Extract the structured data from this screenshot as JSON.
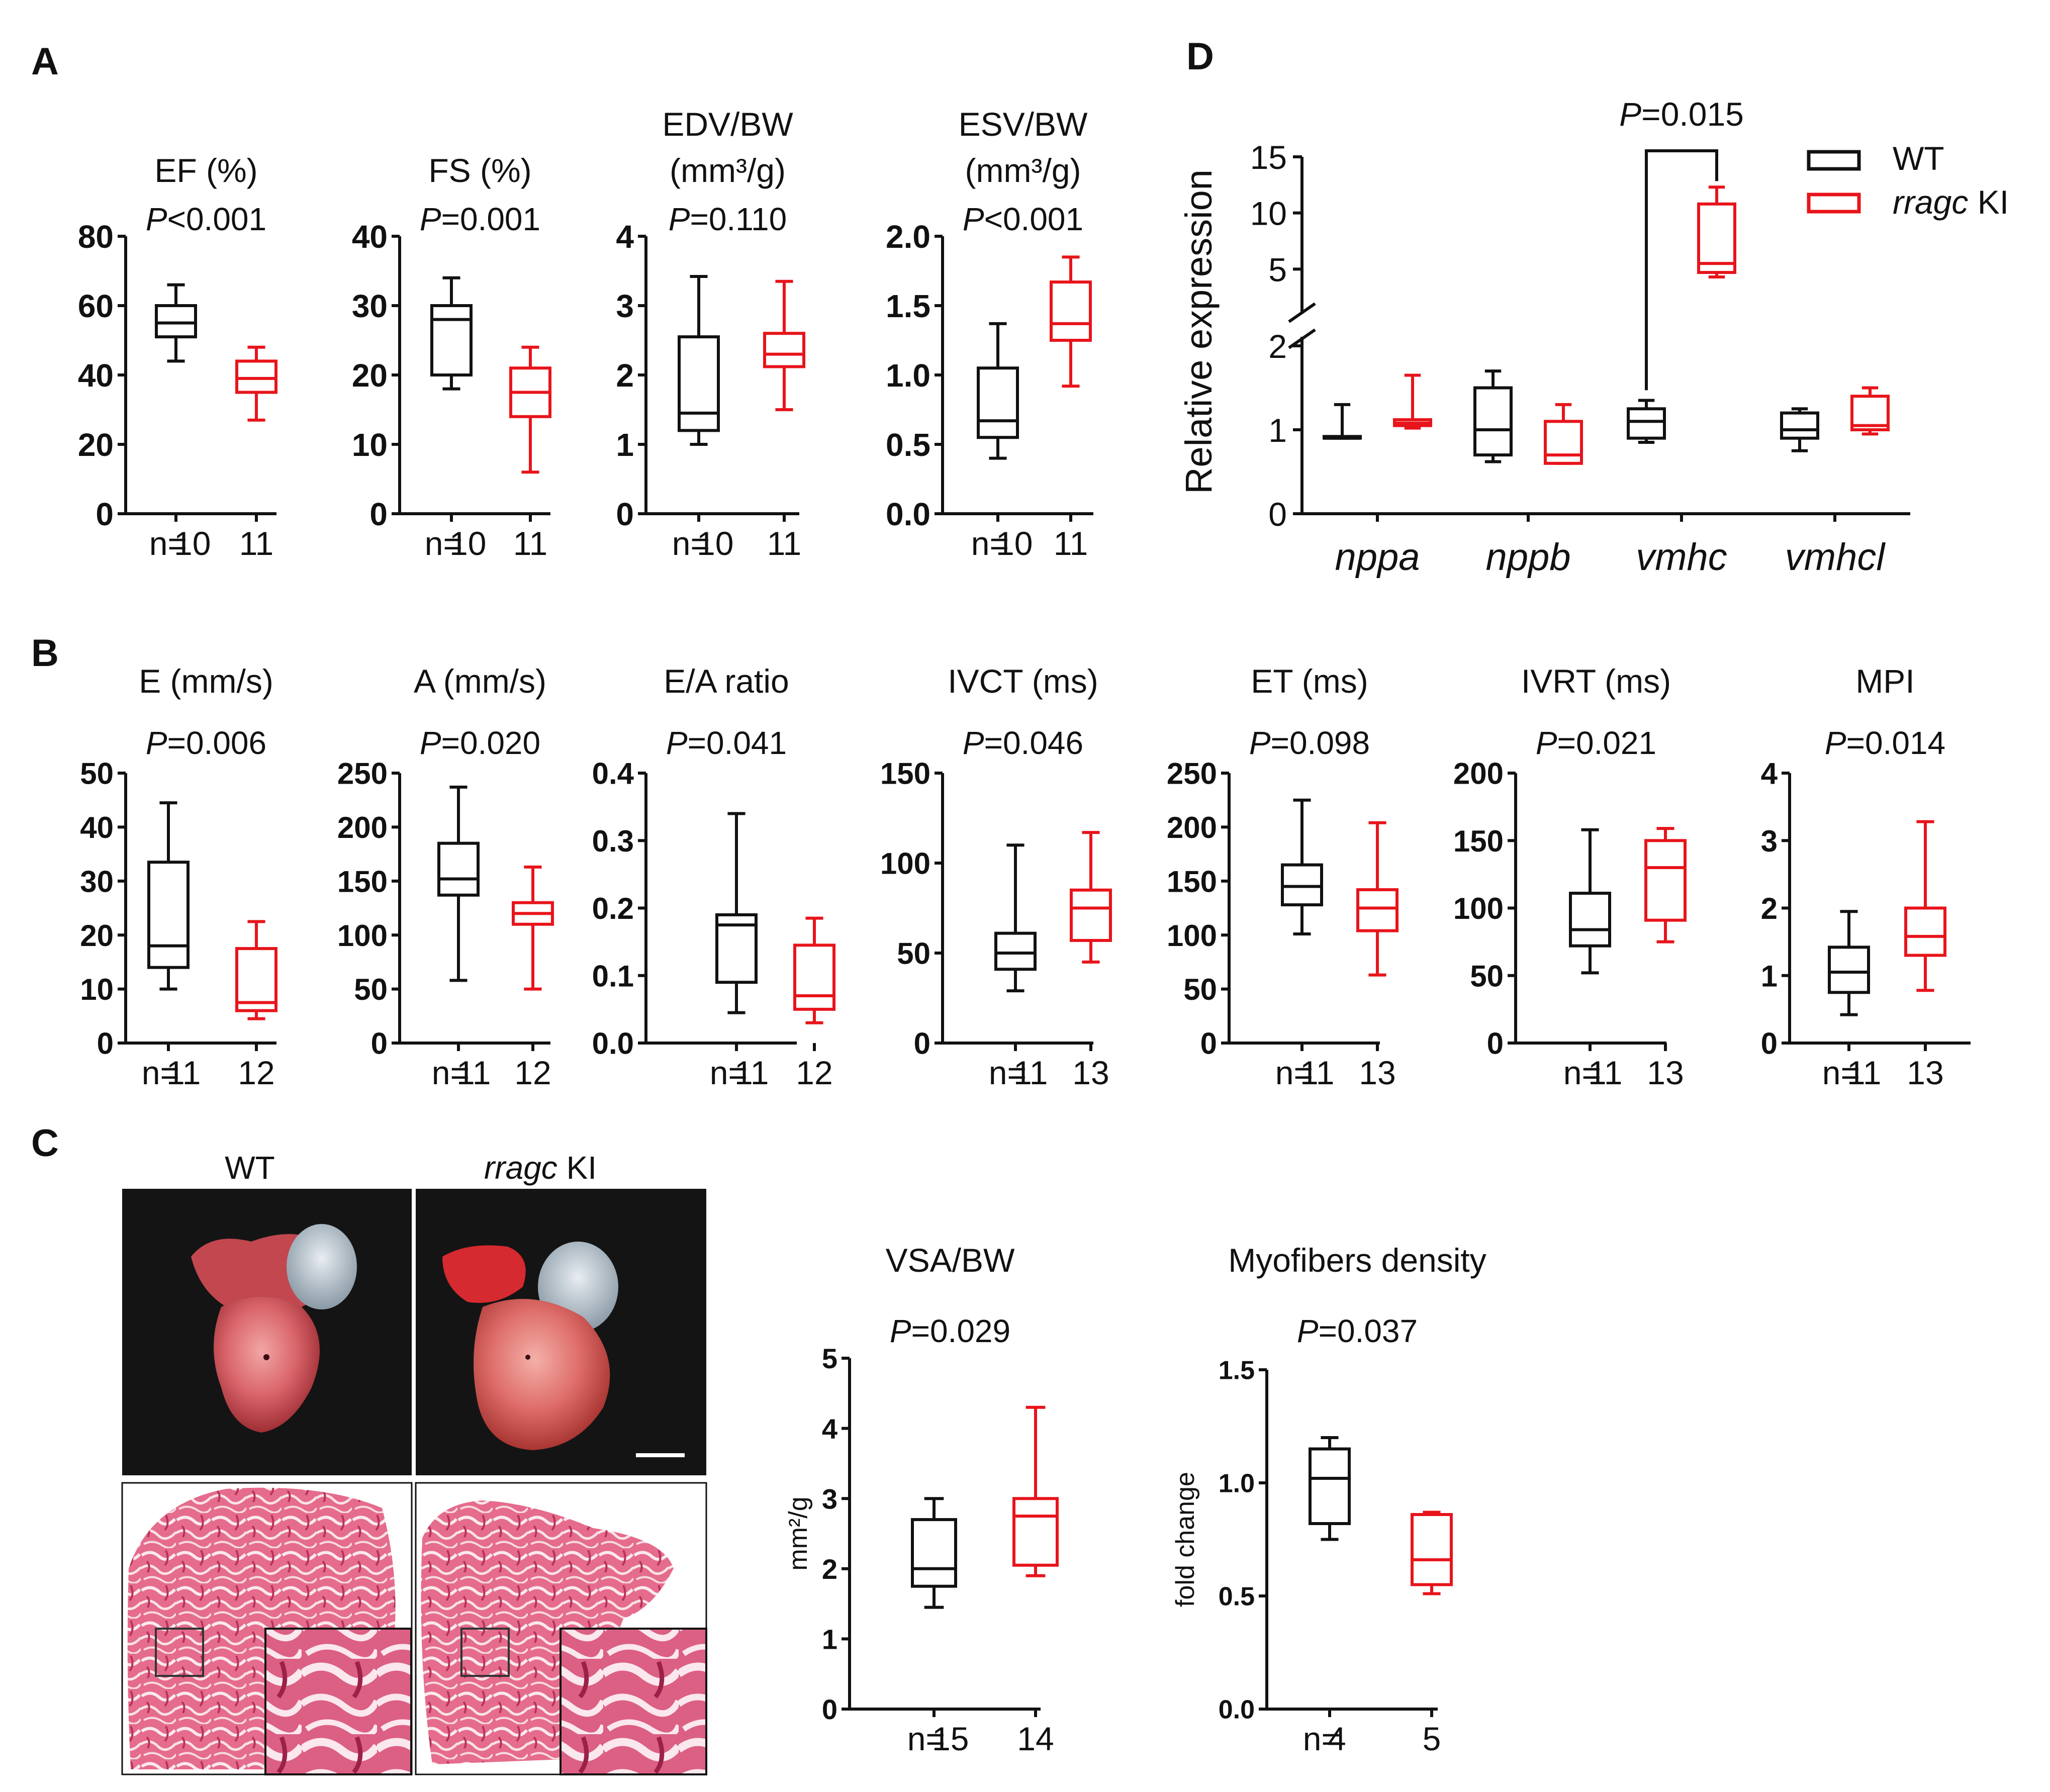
{
  "panels": {
    "A": "A",
    "B": "B",
    "C": "C",
    "D": "D"
  },
  "colors": {
    "wt": "#111111",
    "ki": "#e8141b"
  },
  "chart_data": [
    {
      "id": "a1",
      "panel": "A",
      "type": "box",
      "title_lines": [
        "EF (%)"
      ],
      "p_prefix": "P",
      "p_text": "<0.001",
      "ylim": [
        0,
        80
      ],
      "ticks": [
        0,
        20,
        40,
        60,
        80
      ],
      "n_prefix": "n=",
      "groups": [
        {
          "name": "WT",
          "n": "10",
          "min": 44,
          "q1": 51,
          "median": 55,
          "q3": 60,
          "max": 66
        },
        {
          "name": "rragc KI",
          "n": "11",
          "min": 27,
          "q1": 35,
          "median": 39,
          "q3": 44,
          "max": 48
        }
      ]
    },
    {
      "id": "a2",
      "panel": "A",
      "type": "box",
      "title_lines": [
        "FS (%)"
      ],
      "p_prefix": "P",
      "p_text": "=0.001",
      "ylim": [
        0,
        40
      ],
      "ticks": [
        0,
        10,
        20,
        30,
        40
      ],
      "n_prefix": "n=",
      "groups": [
        {
          "name": "WT",
          "n": "10",
          "min": 18,
          "q1": 20,
          "median": 28,
          "q3": 30,
          "max": 34
        },
        {
          "name": "rragc KI",
          "n": "11",
          "min": 6,
          "q1": 14,
          "median": 17.5,
          "q3": 21,
          "max": 24
        }
      ]
    },
    {
      "id": "a3",
      "panel": "A",
      "type": "box",
      "title_lines": [
        "EDV/BW",
        "(mm³/g)"
      ],
      "p_prefix": "P",
      "p_text": "=0.110",
      "ylim": [
        0,
        4
      ],
      "ticks": [
        0,
        1,
        2,
        3,
        4
      ],
      "n_prefix": "n=",
      "groups": [
        {
          "name": "WT",
          "n": "10",
          "min": 1.0,
          "q1": 1.2,
          "median": 1.45,
          "q3": 2.55,
          "max": 3.42
        },
        {
          "name": "rragc KI",
          "n": "11",
          "min": 1.5,
          "q1": 2.12,
          "median": 2.3,
          "q3": 2.6,
          "max": 3.35
        }
      ]
    },
    {
      "id": "a4",
      "panel": "A",
      "type": "box",
      "title_lines": [
        "ESV/BW",
        "(mm³/g)"
      ],
      "p_prefix": "P",
      "p_text": "<0.001",
      "ylim": [
        0,
        2
      ],
      "ticks": [
        0.0,
        0.5,
        1.0,
        1.5,
        2.0
      ],
      "decimals": 1,
      "n_prefix": "n=",
      "groups": [
        {
          "name": "WT",
          "n": "10",
          "min": 0.4,
          "q1": 0.55,
          "median": 0.67,
          "q3": 1.05,
          "max": 1.37
        },
        {
          "name": "rragc KI",
          "n": "11",
          "min": 0.92,
          "q1": 1.25,
          "median": 1.37,
          "q3": 1.67,
          "max": 1.85
        }
      ]
    },
    {
      "id": "b1",
      "panel": "B",
      "type": "box",
      "title_lines": [
        "E (mm/s)"
      ],
      "p_prefix": "P",
      "p_text": "=0.006",
      "ylim": [
        0,
        50
      ],
      "ticks": [
        0,
        10,
        20,
        30,
        40,
        50
      ],
      "n_prefix": "n=",
      "groups": [
        {
          "name": "WT",
          "n": "11",
          "min": 10,
          "q1": 14,
          "median": 18,
          "q3": 33.5,
          "max": 44.5
        },
        {
          "name": "rragc KI",
          "n": "12",
          "min": 4.5,
          "q1": 6,
          "median": 7.5,
          "q3": 17.5,
          "max": 22.5
        }
      ]
    },
    {
      "id": "b2",
      "panel": "B",
      "type": "box",
      "title_lines": [
        "A (mm/s)"
      ],
      "p_prefix": "P",
      "p_text": "=0.020",
      "ylim": [
        0,
        250
      ],
      "ticks": [
        0,
        50,
        100,
        150,
        200,
        250
      ],
      "n_prefix": "n=",
      "groups": [
        {
          "name": "WT",
          "n": "11",
          "min": 58,
          "q1": 137,
          "median": 152,
          "q3": 185,
          "max": 237
        },
        {
          "name": "rragc KI",
          "n": "12",
          "min": 50,
          "q1": 110,
          "median": 120,
          "q3": 130,
          "max": 163
        }
      ]
    },
    {
      "id": "b3",
      "panel": "B",
      "type": "box",
      "title_lines": [
        "E/A ratio"
      ],
      "p_prefix": "P",
      "p_text": "=0.041",
      "ylim": [
        0,
        0.4
      ],
      "ticks": [
        0.0,
        0.1,
        0.2,
        0.3,
        0.4
      ],
      "decimals": 1,
      "n_prefix": "n=",
      "groups": [
        {
          "name": "WT",
          "n": "11",
          "min": 0.045,
          "q1": 0.09,
          "median": 0.175,
          "q3": 0.19,
          "max": 0.34
        },
        {
          "name": "rragc KI",
          "n": "12",
          "min": 0.03,
          "q1": 0.05,
          "median": 0.07,
          "q3": 0.145,
          "max": 0.185
        }
      ]
    },
    {
      "id": "b4",
      "panel": "B",
      "type": "box",
      "title_lines": [
        "IVCT (ms)"
      ],
      "p_prefix": "P",
      "p_text": "=0.046",
      "ylim": [
        0,
        150
      ],
      "ticks": [
        0,
        50,
        100,
        150
      ],
      "n_prefix": "n=",
      "groups": [
        {
          "name": "WT",
          "n": "11",
          "min": 29,
          "q1": 41,
          "median": 50,
          "q3": 61,
          "max": 110
        },
        {
          "name": "rragc KI",
          "n": "13",
          "min": 45,
          "q1": 57,
          "median": 75,
          "q3": 85,
          "max": 117
        }
      ]
    },
    {
      "id": "b5",
      "panel": "B",
      "type": "box",
      "title_lines": [
        "ET (ms)"
      ],
      "p_prefix": "P",
      "p_text": "=0.098",
      "ylim": [
        0,
        250
      ],
      "ticks": [
        0,
        50,
        100,
        150,
        200,
        250
      ],
      "n_prefix": "n=",
      "groups": [
        {
          "name": "WT",
          "n": "11",
          "min": 101,
          "q1": 128,
          "median": 145,
          "q3": 165,
          "max": 225
        },
        {
          "name": "rragc KI",
          "n": "13",
          "min": 63,
          "q1": 104,
          "median": 125,
          "q3": 142,
          "max": 204
        }
      ]
    },
    {
      "id": "b6",
      "panel": "B",
      "type": "box",
      "title_lines": [
        "IVRT (ms)"
      ],
      "p_prefix": "P",
      "p_text": "=0.021",
      "ylim": [
        0,
        200
      ],
      "ticks": [
        0,
        50,
        100,
        150,
        200
      ],
      "n_prefix": "n=",
      "groups": [
        {
          "name": "WT",
          "n": "11",
          "min": 52,
          "q1": 72,
          "median": 84,
          "q3": 111,
          "max": 158
        },
        {
          "name": "rragc KI",
          "n": "13",
          "min": 75,
          "q1": 91,
          "median": 130,
          "q3": 150,
          "max": 159
        }
      ]
    },
    {
      "id": "b7",
      "panel": "B",
      "type": "box",
      "title_lines": [
        "MPI"
      ],
      "p_prefix": "P",
      "p_text": "=0.014",
      "ylim": [
        0,
        4
      ],
      "ticks": [
        0,
        1,
        2,
        3,
        4
      ],
      "n_prefix": "n=",
      "groups": [
        {
          "name": "WT",
          "n": "11",
          "min": 0.42,
          "q1": 0.75,
          "median": 1.05,
          "q3": 1.42,
          "max": 1.95
        },
        {
          "name": "rragc KI",
          "n": "13",
          "min": 0.78,
          "q1": 1.3,
          "median": 1.58,
          "q3": 2.0,
          "max": 3.28
        }
      ]
    },
    {
      "id": "c1",
      "panel": "C",
      "type": "box",
      "title_lines": [
        "VSA/BW"
      ],
      "p_prefix": "P",
      "p_text": "=0.029",
      "ylim": [
        0,
        5
      ],
      "ticks": [
        0,
        1,
        2,
        3,
        4,
        5
      ],
      "ylabel": "mm²/g",
      "n_prefix": "n=",
      "groups": [
        {
          "name": "WT",
          "n": "15",
          "min": 1.45,
          "q1": 1.75,
          "median": 2.0,
          "q3": 2.7,
          "max": 3.0
        },
        {
          "name": "rragc KI",
          "n": "14",
          "min": 1.9,
          "q1": 2.05,
          "median": 2.75,
          "q3": 3.0,
          "max": 4.3
        }
      ]
    },
    {
      "id": "c2",
      "panel": "C",
      "type": "box",
      "title_lines": [
        "Myofibers density"
      ],
      "p_prefix": "P",
      "p_text": "=0.037",
      "ylim": [
        0,
        1.5
      ],
      "ticks": [
        0.0,
        0.5,
        1.0,
        1.5
      ],
      "decimals": 1,
      "ylabel": "fold change",
      "n_prefix": "n=",
      "groups": [
        {
          "name": "WT",
          "n": "4",
          "min": 0.75,
          "q1": 0.82,
          "median": 1.02,
          "q3": 1.15,
          "max": 1.2
        },
        {
          "name": "rragc KI",
          "n": "5",
          "min": 0.51,
          "q1": 0.55,
          "median": 0.66,
          "q3": 0.86,
          "max": 0.87
        }
      ]
    },
    {
      "id": "d",
      "panel": "D",
      "type": "box",
      "ylabel": "Relative expression",
      "ticks_low": [
        0,
        1,
        2
      ],
      "ticks_high": [
        5,
        10,
        15
      ],
      "ylim_low": [
        0,
        2
      ],
      "ylim_high": [
        3,
        15
      ],
      "categories": [
        "nppa",
        "nppb",
        "vmhc",
        "vmhcl"
      ],
      "bracket_p_prefix": "P",
      "bracket_p_text": "=0.015",
      "legend": {
        "wt": "WT",
        "ki_italic": "rragc",
        "ki_rest": " KI"
      },
      "series": [
        {
          "name": "WT",
          "boxes": [
            {
              "min": 0.9,
              "q1": 0.9,
              "median": 0.9,
              "q3": 0.92,
              "max": 1.3
            },
            {
              "min": 0.62,
              "q1": 0.7,
              "median": 1.0,
              "q3": 1.5,
              "max": 1.7
            },
            {
              "min": 0.85,
              "q1": 0.9,
              "median": 1.1,
              "q3": 1.25,
              "max": 1.35
            },
            {
              "min": 0.75,
              "q1": 0.9,
              "median": 1.0,
              "q3": 1.2,
              "max": 1.25
            }
          ]
        },
        {
          "name": "rragc KI",
          "boxes": [
            {
              "min": 1.02,
              "q1": 1.05,
              "median": 1.08,
              "q3": 1.12,
              "max": 1.65
            },
            {
              "min": 0.6,
              "q1": 0.6,
              "median": 0.7,
              "q3": 1.1,
              "max": 1.3
            },
            {
              "min": 4.3,
              "q1": 4.7,
              "median": 5.5,
              "q3": 10.8,
              "max": 12.3
            },
            {
              "min": 0.95,
              "q1": 1.0,
              "median": 1.05,
              "q3": 1.4,
              "max": 1.5
            }
          ]
        }
      ]
    }
  ],
  "panel_c_images": {
    "wt_label": "WT",
    "ki_label_italic": "rragc",
    "ki_label_rest": " KI"
  }
}
